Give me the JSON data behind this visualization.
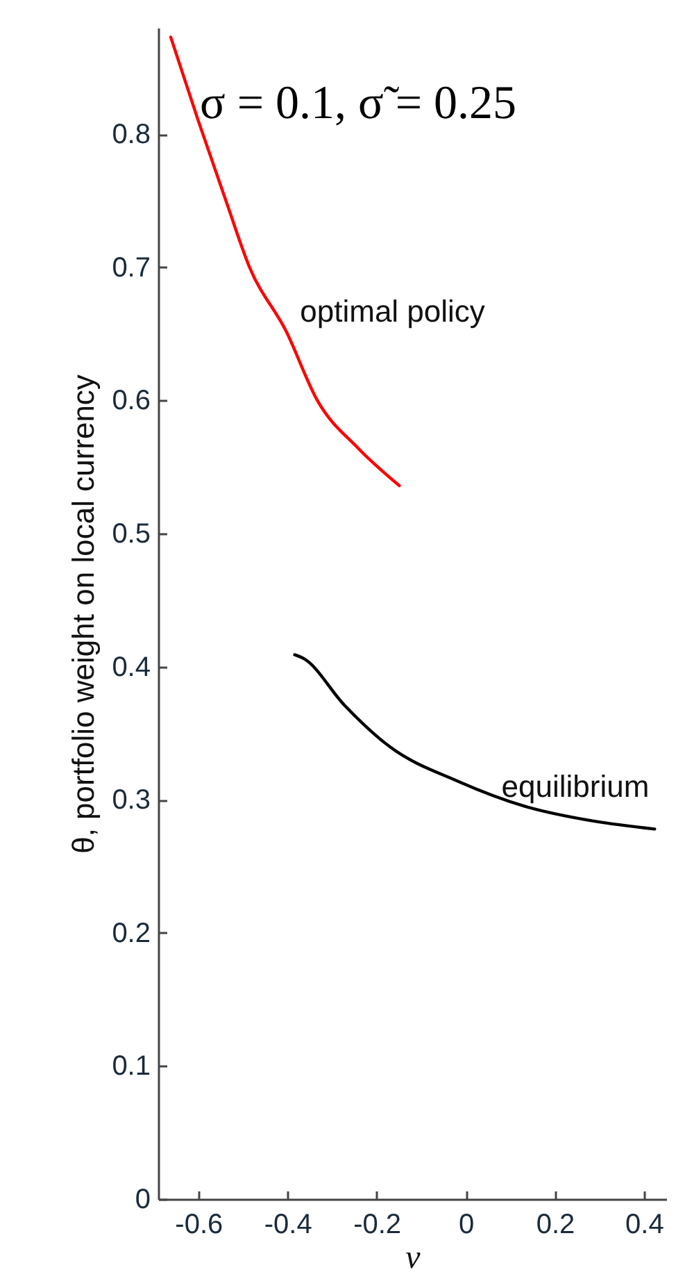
{
  "chart_data": {
    "type": "line",
    "title": "σ = 0.1, σ̃ = 0.25",
    "xlabel": "ν",
    "ylabel": "θ, portfolio weight on local currency",
    "xlim": [
      -0.69,
      0.45
    ],
    "ylim": [
      0,
      0.88
    ],
    "xticks": [
      -0.6,
      -0.4,
      -0.2,
      0,
      0.2,
      0.4
    ],
    "yticks": [
      0,
      0.1,
      0.2,
      0.3,
      0.4,
      0.5,
      0.6,
      0.7,
      0.8
    ],
    "grid": false,
    "marker": "none",
    "line_style": "solid",
    "series": [
      {
        "name": "optimal policy",
        "color": "#ff0000",
        "x": [
          -0.662,
          -0.6,
          -0.537,
          -0.485,
          -0.403,
          -0.333,
          -0.241,
          -0.149
        ],
        "values": [
          0.873,
          0.81,
          0.749,
          0.7,
          0.652,
          0.6,
          0.564,
          0.536
        ]
      },
      {
        "name": "equilibrium",
        "color": "#000000",
        "x": [
          -0.384,
          -0.363,
          -0.272,
          -0.171,
          -0.018,
          0.134,
          0.287,
          0.424
        ],
        "values": [
          0.409,
          0.406,
          0.371,
          0.34,
          0.314,
          0.295,
          0.284,
          0.278
        ]
      }
    ]
  }
}
